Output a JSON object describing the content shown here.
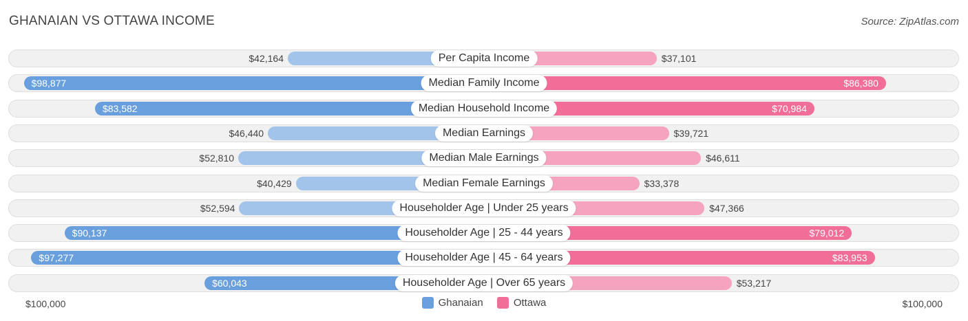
{
  "header": {
    "title": "GHANAIAN VS OTTAWA INCOME",
    "source": "Source: ZipAtlas.com"
  },
  "colors": {
    "ghanaian_strong": "#6a9fdd",
    "ghanaian_light": "#a3c4ea",
    "ottawa_strong": "#f06e98",
    "ottawa_light": "#f5a3be"
  },
  "axis": {
    "left_label": "$100,000",
    "right_label": "$100,000"
  },
  "legend": {
    "items": [
      "Ghanaian",
      "Ottawa"
    ]
  },
  "chart_data": {
    "type": "bar",
    "orientation": "horizontal-diverging",
    "title": "GHANAIAN VS OTTAWA INCOME",
    "xlim": [
      0,
      100000
    ],
    "categories": [
      "Per Capita Income",
      "Median Family Income",
      "Median Household Income",
      "Median Earnings",
      "Median Male Earnings",
      "Median Female Earnings",
      "Householder Age | Under 25 years",
      "Householder Age | 25 - 44 years",
      "Householder Age | 45 - 64 years",
      "Householder Age | Over 65 years"
    ],
    "series": [
      {
        "name": "Ghanaian",
        "values": [
          42164,
          98877,
          83582,
          46440,
          52810,
          40429,
          52594,
          90137,
          97277,
          60043
        ],
        "labels": [
          "$42,164",
          "$98,877",
          "$83,582",
          "$46,440",
          "$52,810",
          "$40,429",
          "$52,594",
          "$90,137",
          "$97,277",
          "$60,043"
        ]
      },
      {
        "name": "Ottawa",
        "values": [
          37101,
          86380,
          70984,
          39721,
          46611,
          33378,
          47366,
          79012,
          83953,
          53217
        ],
        "labels": [
          "$37,101",
          "$86,380",
          "$70,984",
          "$39,721",
          "$46,611",
          "$33,378",
          "$47,366",
          "$79,012",
          "$83,953",
          "$53,217"
        ]
      }
    ]
  }
}
